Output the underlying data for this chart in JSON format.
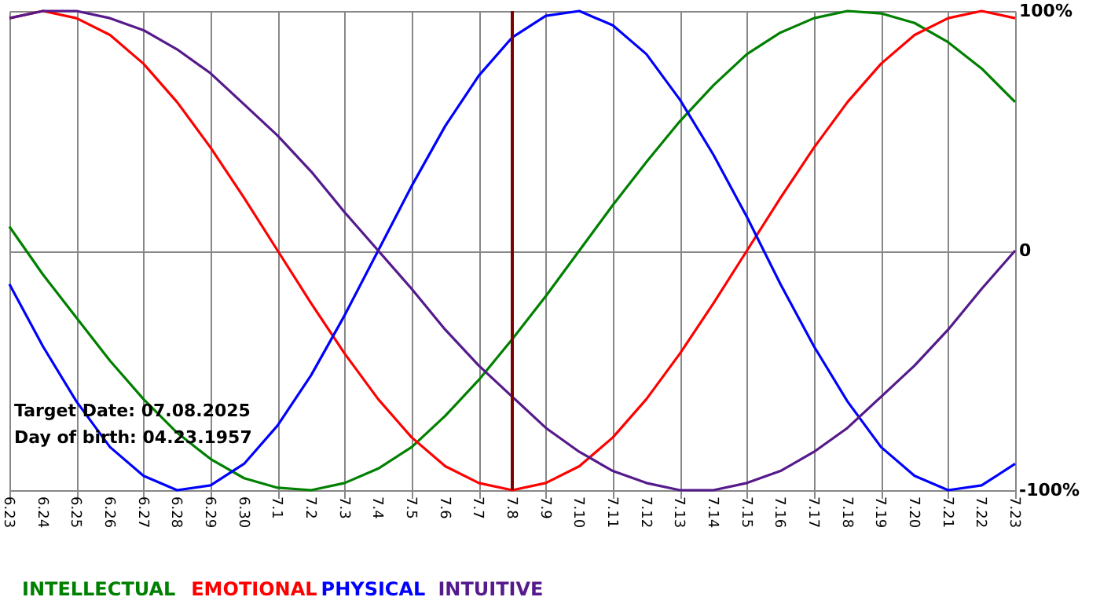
{
  "chart_data": {
    "type": "line",
    "categories": [
      "6.23",
      "6.24",
      "6.25",
      "6.26",
      "6.27",
      "6.28",
      "6.29",
      "6.30",
      "7.1",
      "7.2",
      "7.3",
      "7.4",
      "7.5",
      "7.6",
      "7.7",
      "7.8",
      "7.9",
      "7.10",
      "7.11",
      "7.12",
      "7.13",
      "7.14",
      "7.15",
      "7.16",
      "7.17",
      "7.18",
      "7.19",
      "7.20",
      "7.21",
      "7.22",
      "7.23"
    ],
    "series": [
      {
        "name": "INTELLECTUAL",
        "color": "#008000",
        "values": [
          10,
          -10,
          -28,
          -46,
          -62,
          -76,
          -87,
          -95,
          -99,
          -100,
          -97,
          -91,
          -82,
          -69,
          -54,
          -37,
          -19,
          0,
          19,
          37,
          54,
          69,
          82,
          91,
          97,
          100,
          99,
          95,
          87,
          76,
          62
        ]
      },
      {
        "name": "EMOTIONAL",
        "color": "#ff0000",
        "values": [
          97,
          100,
          97,
          90,
          78,
          62,
          43,
          22,
          0,
          -22,
          -43,
          -62,
          -78,
          -90,
          -97,
          -100,
          -97,
          -90,
          -78,
          -62,
          -43,
          -22,
          0,
          22,
          43,
          62,
          78,
          90,
          97,
          100,
          97
        ]
      },
      {
        "name": "PHYSICAL",
        "color": "#0000ff",
        "values": [
          -14,
          -40,
          -63,
          -82,
          -94,
          -100,
          -98,
          -89,
          -73,
          -52,
          -27,
          0,
          27,
          52,
          73,
          89,
          98,
          100,
          94,
          82,
          63,
          40,
          14,
          -14,
          -40,
          -63,
          -82,
          -94,
          -100,
          -98,
          -89
        ]
      },
      {
        "name": "INTUITIVE",
        "color": "#551a8b",
        "values": [
          97,
          100,
          100,
          97,
          92,
          84,
          74,
          61,
          48,
          33,
          16,
          0,
          -16,
          -33,
          -48,
          -61,
          -74,
          -84,
          -92,
          -97,
          -100,
          -100,
          -97,
          -92,
          -84,
          -74,
          -61,
          -48,
          -33,
          -16,
          0
        ]
      }
    ],
    "ylim": [
      -100,
      100
    ],
    "yticks": [
      {
        "value": 100,
        "label": "100%"
      },
      0,
      {
        "value": -100,
        "label": "-100%"
      }
    ],
    "grid": true,
    "legend": "bottom left",
    "ref_lines": [
      {
        "axis": "x",
        "value": "7.8",
        "color": "#800000"
      }
    ],
    "annotations": [
      "Target Date: 07.08.2025",
      "Day of birth: 04.23.1957"
    ]
  }
}
